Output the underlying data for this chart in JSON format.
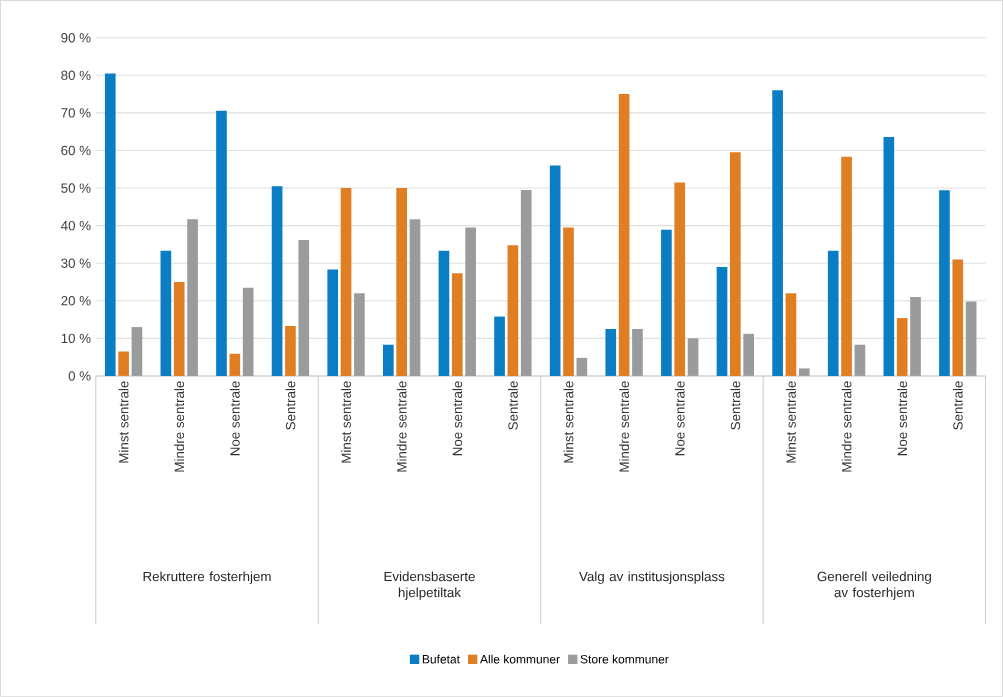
{
  "chart_data": {
    "type": "bar",
    "categories": [
      "Minst sentrale",
      "Mindre sentrale",
      "Noe sentrale",
      "Sentrale",
      "Minst sentrale",
      "Mindre sentrale",
      "Noe sentrale",
      "Sentrale",
      "Minst sentrale",
      "Mindre sentrale",
      "Noe sentrale",
      "Sentrale",
      "Minst sentrale",
      "Mindre sentrale",
      "Noe sentrale",
      "Sentrale"
    ],
    "series": [
      {
        "name": "Bufetat",
        "color": "#0a7dc4",
        "values": [
          80.5,
          33.3,
          70.6,
          50.5,
          28.3,
          8.3,
          33.3,
          15.8,
          56,
          12.5,
          38.9,
          29,
          76,
          33.3,
          63.6,
          49.4
        ]
      },
      {
        "name": "Alle kommuner",
        "color": "#e07e24",
        "values": [
          6.5,
          25,
          5.9,
          13.3,
          50,
          50,
          27.3,
          34.8,
          39.5,
          75,
          51.5,
          59.5,
          22,
          58.3,
          15.4,
          31
        ]
      },
      {
        "name": "Store kommuner",
        "color": "#9a9b9d",
        "values": [
          13,
          41.7,
          23.5,
          36.2,
          22,
          41.7,
          39.5,
          49.5,
          4.8,
          12.5,
          10,
          11.2,
          2,
          8.3,
          21,
          19.8
        ]
      }
    ],
    "annotations": [
      "Rekruttere fosterhjem",
      "Evidensbaserte hjelpetiltak",
      "Valg av institusjonsplass",
      "Generell veiledning av fosterhjem"
    ],
    "ylim": [
      0,
      90
    ],
    "yticks": [
      {
        "value": 0,
        "label": "0 %"
      },
      {
        "value": 10,
        "label": "10 %"
      },
      {
        "value": 20,
        "label": "20 %"
      },
      {
        "value": 30,
        "label": "30 %"
      },
      {
        "value": 40,
        "label": "40 %"
      },
      {
        "value": 50,
        "label": "50 %"
      },
      {
        "value": 60,
        "label": "60 %"
      },
      {
        "value": 70,
        "label": "70 %"
      },
      {
        "value": 80,
        "label": "80 %"
      },
      {
        "value": 90,
        "label": "90 %"
      }
    ],
    "grid": "y",
    "legend": "bottom"
  }
}
